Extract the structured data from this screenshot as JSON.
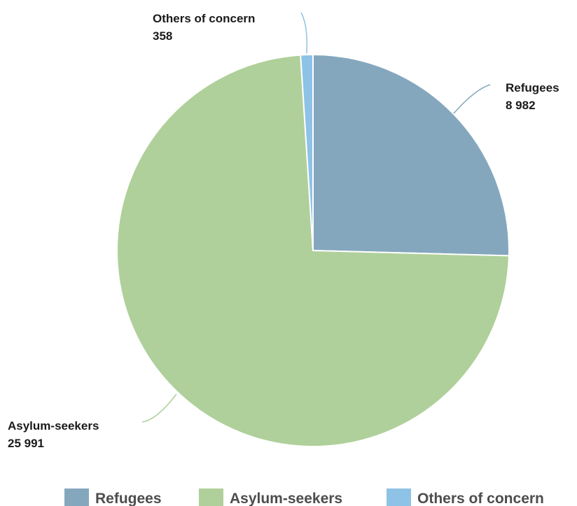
{
  "chart_data": {
    "type": "pie",
    "slices": [
      {
        "label": "Refugees",
        "value": 8982,
        "value_text": "8 982",
        "color": "#84a7be"
      },
      {
        "label": "Asylum-seekers",
        "value": 25991,
        "value_text": "25 991",
        "color": "#afd09a"
      },
      {
        "label": "Others of concern",
        "value": 358,
        "value_text": "358",
        "color": "#8ec2e6"
      }
    ],
    "legend": {
      "placement": "bottom",
      "entries": [
        "Refugees",
        "Asylum-seekers",
        "Others of concern"
      ]
    }
  }
}
